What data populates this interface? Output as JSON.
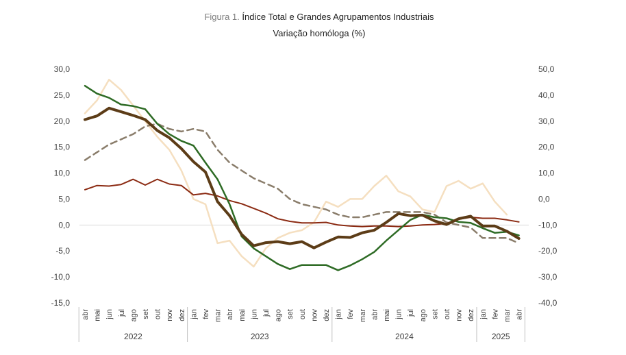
{
  "chart_data": {
    "type": "line",
    "title_prefix": "Figura 1.",
    "title": "Índice Total e Grandes Agrupamentos Industriais",
    "subtitle": "Variação homóloga (%)",
    "y_left": {
      "ticks": [
        "30,0",
        "25,0",
        "20,0",
        "15,0",
        "10,0",
        "5,0",
        "0,0",
        "-5,0",
        "-10,0",
        "-15,0"
      ],
      "range": [
        -15,
        30
      ]
    },
    "y_right": {
      "ticks": [
        "50,0",
        "40,0",
        "30,0",
        "20,0",
        "10,0",
        "0,0",
        "-10,0",
        "-20,0",
        "-30,0",
        "-40,0"
      ],
      "range": [
        -40,
        50
      ]
    },
    "months": [
      "abr",
      "mai",
      "jun",
      "jul",
      "ago",
      "set",
      "out",
      "nov",
      "dez",
      "jan",
      "fev",
      "mar",
      "abr",
      "mai",
      "jun",
      "jul",
      "ago",
      "set",
      "out",
      "nov",
      "dez",
      "jan",
      "fev",
      "mar",
      "abr",
      "mai",
      "jun",
      "jul",
      "ago",
      "set",
      "out",
      "nov",
      "dez",
      "jan",
      "fev",
      "mar",
      "abr"
    ],
    "years": [
      {
        "label": "2022",
        "start": 0,
        "end": 8
      },
      {
        "label": "2023",
        "start": 9,
        "end": 20
      },
      {
        "label": "2024",
        "start": 21,
        "end": 32
      },
      {
        "label": "2025",
        "start": 33,
        "end": 36
      }
    ],
    "series": [
      {
        "axis": "right",
        "color": "#f5dfc0",
        "width": 2.5,
        "dash": "",
        "values": [
          33,
          38,
          46,
          42,
          36,
          30,
          24,
          19,
          11,
          0,
          -2,
          -17,
          -16,
          -22,
          -26,
          -19,
          -15,
          -13,
          -12,
          -9,
          -1,
          -3,
          0,
          0,
          5,
          9,
          3,
          1,
          -4,
          -5,
          5,
          7,
          4,
          6,
          -1,
          -6,
          null
        ]
      },
      {
        "axis": "left",
        "color": "#8a7d6b",
        "width": 2.5,
        "dash": "9,6",
        "values": [
          12.5,
          14,
          15.5,
          16.5,
          17.5,
          19,
          19.5,
          18.5,
          18,
          18.5,
          18,
          14.5,
          12,
          10.5,
          9,
          8,
          7,
          5,
          4,
          3.5,
          3,
          2,
          1.5,
          1.5,
          2,
          2.5,
          2.5,
          2.5,
          2.5,
          2,
          0.5,
          0,
          -0.5,
          -2.5,
          -2.5,
          -2.5,
          -3.5
        ]
      },
      {
        "axis": "left",
        "color": "#8b2a12",
        "width": 2,
        "dash": "",
        "values": [
          6.8,
          7.6,
          7.5,
          7.8,
          8.8,
          7.7,
          8.8,
          7.9,
          7.6,
          5.8,
          6.1,
          5.6,
          4.7,
          4.1,
          3.2,
          2.3,
          1.2,
          0.7,
          0.4,
          0.4,
          0.5,
          0,
          -0.2,
          -0.3,
          -0.2,
          -0.2,
          -0.3,
          -0.2,
          0,
          0.1,
          0.3,
          1.1,
          1.5,
          1.3,
          1.3,
          1.0,
          0.6
        ]
      },
      {
        "axis": "left",
        "color": "#2e6b25",
        "width": 2.5,
        "dash": "",
        "values": [
          26.8,
          25.3,
          24.5,
          23.2,
          22.9,
          22.3,
          19.5,
          17.5,
          16.2,
          15.3,
          12,
          8.8,
          4,
          -2.2,
          -4.5,
          -6,
          -7.5,
          -8.5,
          -7.7,
          -7.7,
          -7.7,
          -8.7,
          -7.8,
          -6.6,
          -5.2,
          -3,
          -1,
          1,
          2,
          1.5,
          1.3,
          0.6,
          0.4,
          -0.6,
          -1.5,
          -1.3,
          -2
        ]
      },
      {
        "axis": "left",
        "color": "#5c3c17",
        "width": 4,
        "dash": "",
        "values": [
          20.3,
          21,
          22.5,
          21.8,
          21.1,
          20.3,
          18.2,
          16.8,
          14.7,
          12.2,
          10.2,
          4.5,
          1.8,
          -1.8,
          -4,
          -3.4,
          -3.2,
          -3.6,
          -3.2,
          -4.4,
          -3.3,
          -2.3,
          -2.4,
          -1.5,
          -1,
          0.5,
          2.2,
          1.8,
          1.9,
          0.8,
          0.1,
          1.2,
          1.7,
          -0.2,
          -0.2,
          -1.2,
          -2.6
        ]
      }
    ],
    "grid": false,
    "legend": "none"
  }
}
